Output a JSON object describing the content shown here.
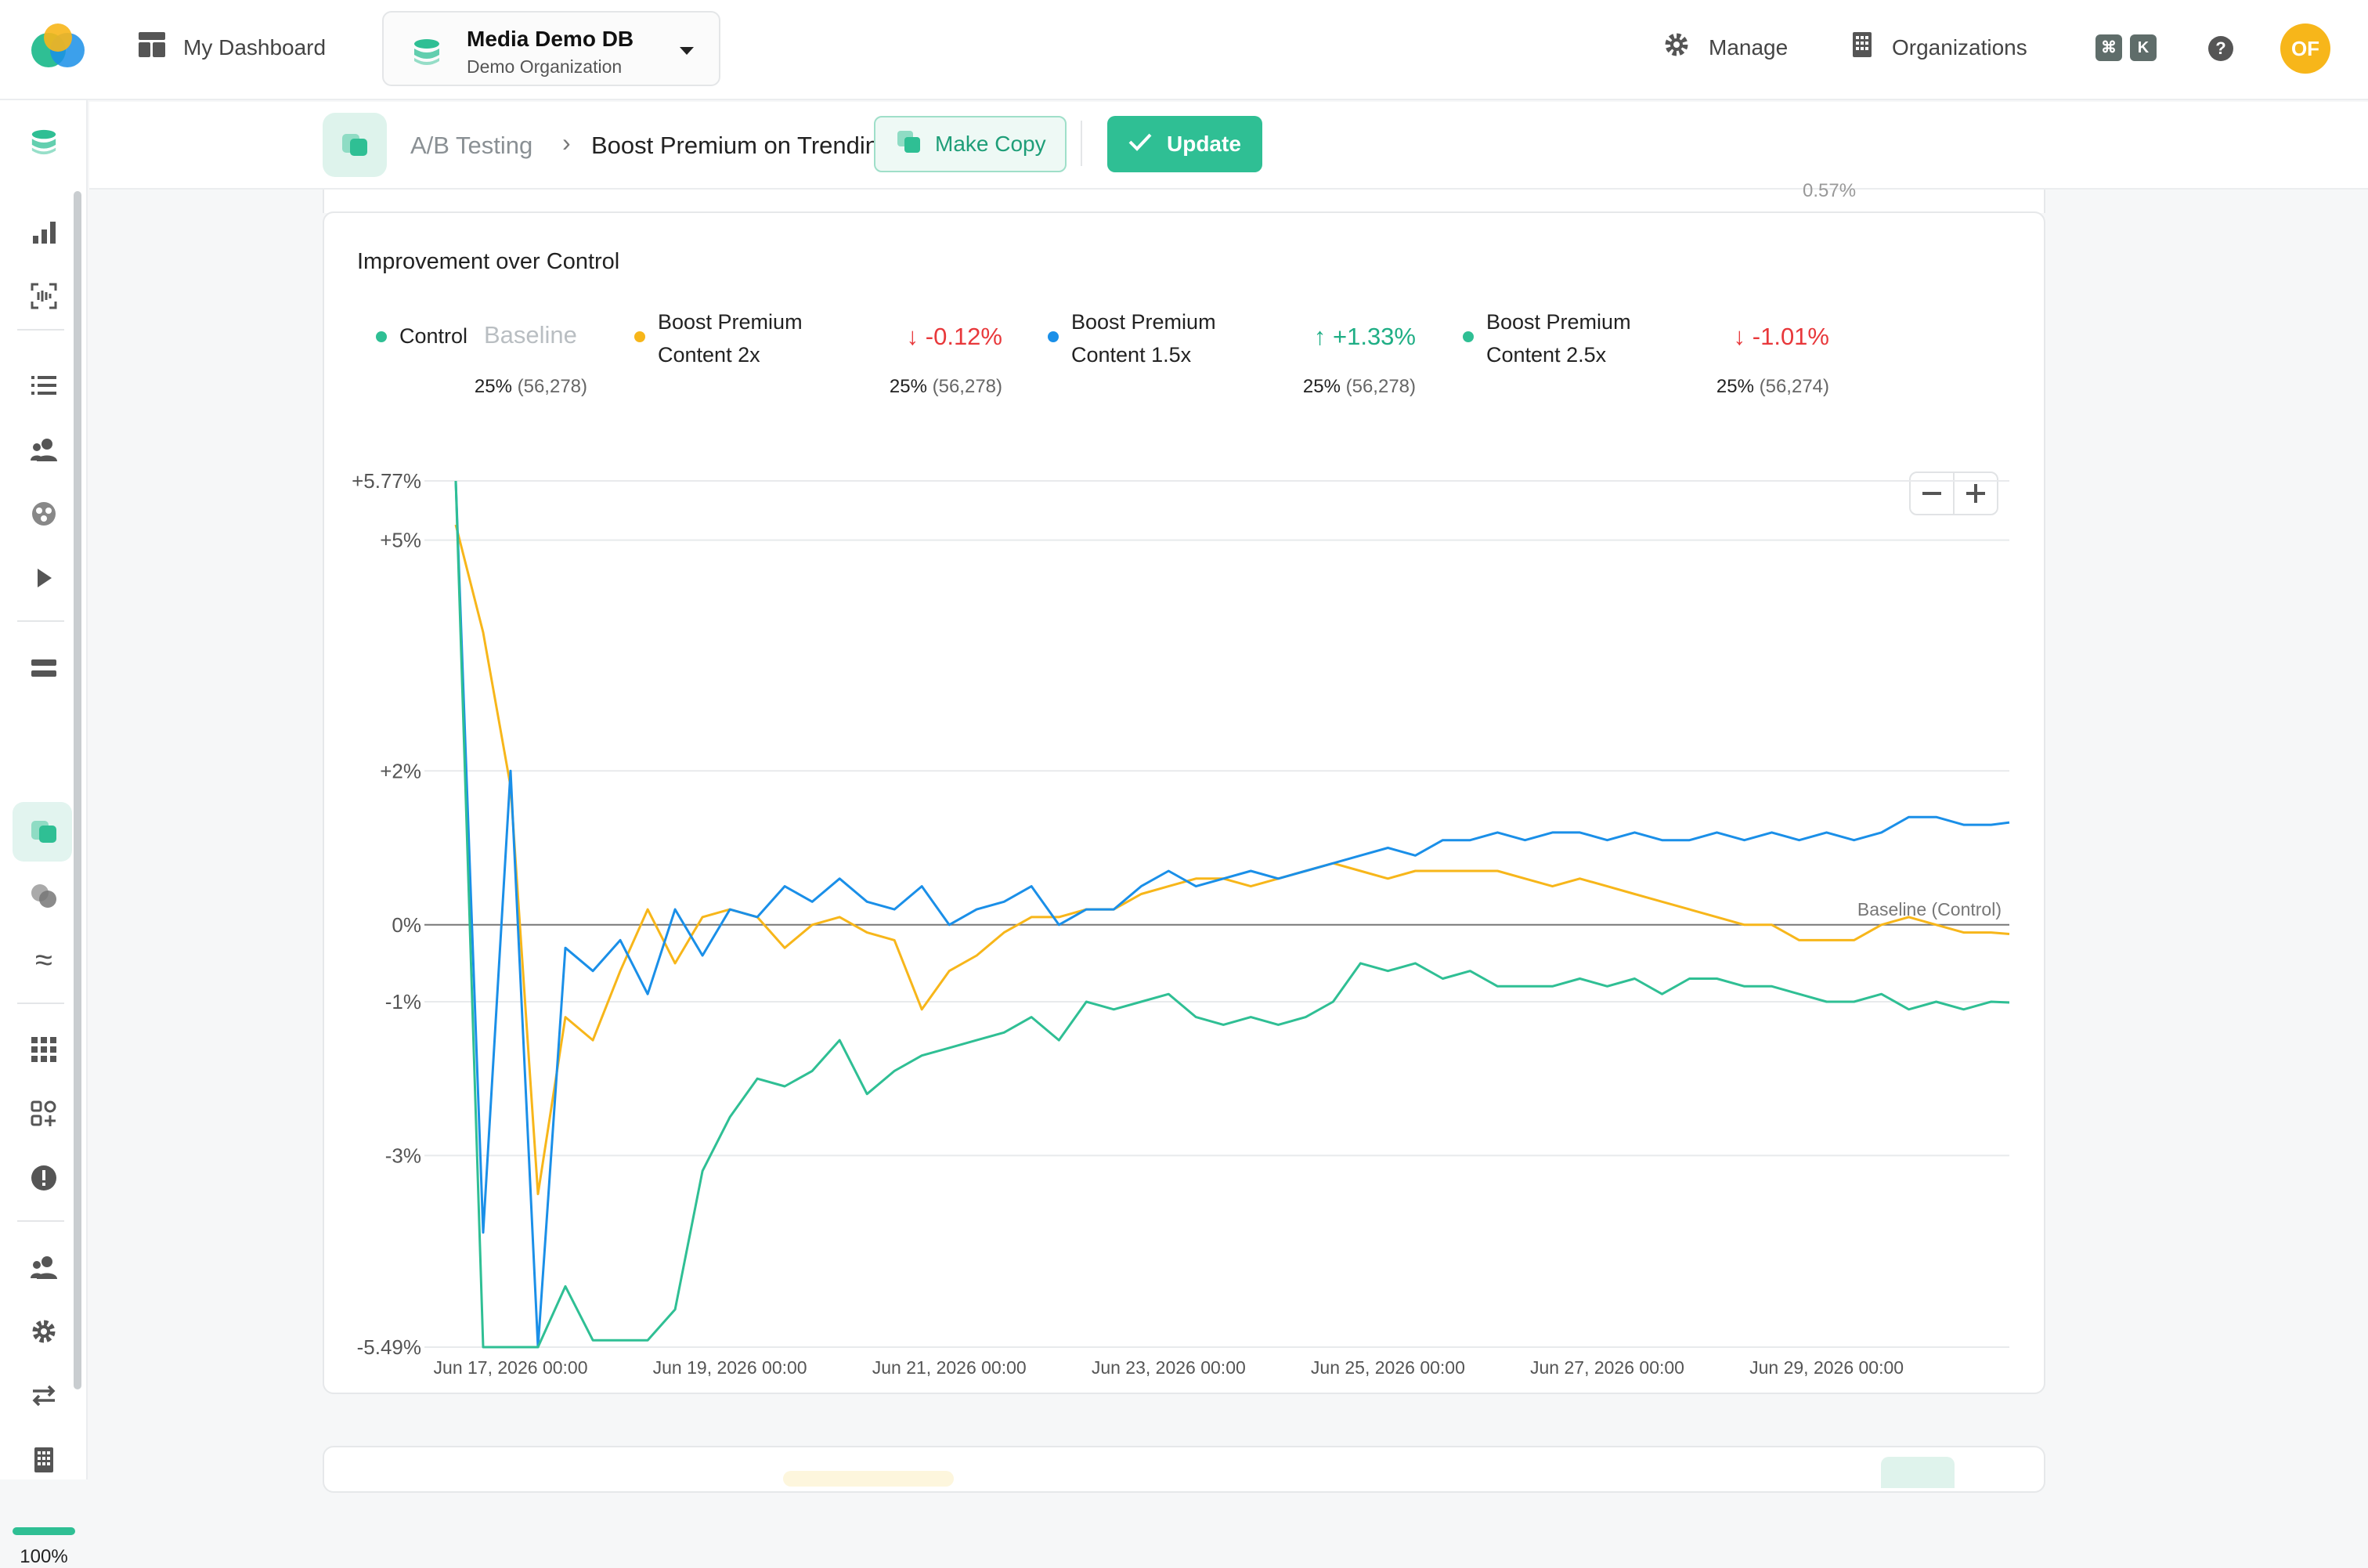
{
  "header": {
    "dashboard_label": "My Dashboard",
    "db_name": "Media Demo DB",
    "db_org": "Demo Organization",
    "manage_label": "Manage",
    "orgs_label": "Organizations",
    "kbd_cmd": "⌘",
    "kbd_k": "K",
    "help": "?",
    "avatar_initials": "OF"
  },
  "sidebar": {
    "zoom_pct": "100%",
    "icons": [
      "database-icon",
      "bar-chart-icon",
      "scan-icon",
      "list-icon",
      "users-icon",
      "dots-icon",
      "play-icon",
      "layers-icon",
      "ab-test-icon",
      "circles-icon",
      "approx-icon",
      "grid-icon",
      "apps-add-icon",
      "alert-icon",
      "team-icon",
      "gear-icon",
      "swap-icon",
      "building-icon"
    ]
  },
  "subheader": {
    "crumb_parent": "A/B Testing",
    "crumb_current": "Boost Premium on Trending Scenario",
    "copy_label": "Make Copy",
    "update_label": "Update"
  },
  "card": {
    "cut_text": "0.57%",
    "title": "Improvement over Control",
    "baseline_tag": "Baseline",
    "legend": [
      {
        "name_line1": "Control",
        "name_line2": "",
        "delta": "",
        "dir": "",
        "share": "25%",
        "count": "(56,278)",
        "color": "#2fbf94"
      },
      {
        "name_line1": "Boost Premium",
        "name_line2": "Content 2x",
        "delta": "-0.12%",
        "dir": "down",
        "share": "25%",
        "count": "(56,278)",
        "color": "#f7b61a"
      },
      {
        "name_line1": "Boost Premium",
        "name_line2": "Content 1.5x",
        "delta": "+1.33%",
        "dir": "up",
        "share": "25%",
        "count": "(56,278)",
        "color": "#1a8fe8"
      },
      {
        "name_line1": "Boost Premium",
        "name_line2": "Content 2.5x",
        "delta": "-1.01%",
        "dir": "down",
        "share": "25%",
        "count": "(56,274)",
        "color": "#2fbf94"
      }
    ]
  },
  "colors": {
    "accent": "#2fbf94",
    "up": "#1fae85",
    "down": "#e8383b"
  },
  "chart_data": {
    "type": "line",
    "title": "Improvement over Control",
    "xlabel": "",
    "ylabel": "",
    "ylim": [
      -5.49,
      5.77
    ],
    "y_ticks": [
      "+5.77%",
      "+5%",
      "+2%",
      "0%",
      "-1%",
      "-3%",
      "-5.49%"
    ],
    "y_tick_values": [
      5.77,
      5,
      2,
      0,
      -1,
      -3,
      -5.49
    ],
    "x_ticks": [
      "Jun 17, 2026 00:00",
      "Jun 19, 2026 00:00",
      "Jun 21, 2026 00:00",
      "Jun 23, 2026 00:00",
      "Jun 25, 2026 00:00",
      "Jun 27, 2026 00:00",
      "Jun 29, 2026 00:00"
    ],
    "x_range": [
      "2026-06-16T12:00",
      "2026-06-30T16:00"
    ],
    "baseline_label": "Baseline (Control)",
    "grid": true,
    "legend": "top",
    "series": [
      {
        "name": "Boost Premium Content 2x",
        "color": "#f7b61a",
        "x": [
          "2026-06-16T12:00",
          "2026-06-16T18:00",
          "2026-06-17T00:00",
          "2026-06-17T06:00",
          "2026-06-17T12:00",
          "2026-06-17T18:00",
          "2026-06-18T00:00",
          "2026-06-18T06:00",
          "2026-06-18T12:00",
          "2026-06-18T18:00",
          "2026-06-19T00:00",
          "2026-06-19T06:00",
          "2026-06-19T12:00",
          "2026-06-19T18:00",
          "2026-06-20T00:00",
          "2026-06-20T06:00",
          "2026-06-20T12:00",
          "2026-06-20T18:00",
          "2026-06-21T00:00",
          "2026-06-21T06:00",
          "2026-06-21T12:00",
          "2026-06-21T18:00",
          "2026-06-22T00:00",
          "2026-06-22T06:00",
          "2026-06-22T12:00",
          "2026-06-22T18:00",
          "2026-06-23T00:00",
          "2026-06-23T06:00",
          "2026-06-23T12:00",
          "2026-06-23T18:00",
          "2026-06-24T00:00",
          "2026-06-24T06:00",
          "2026-06-24T12:00",
          "2026-06-24T18:00",
          "2026-06-25T00:00",
          "2026-06-25T06:00",
          "2026-06-25T12:00",
          "2026-06-25T18:00",
          "2026-06-26T00:00",
          "2026-06-26T06:00",
          "2026-06-26T12:00",
          "2026-06-26T18:00",
          "2026-06-27T00:00",
          "2026-06-27T06:00",
          "2026-06-27T12:00",
          "2026-06-27T18:00",
          "2026-06-28T00:00",
          "2026-06-28T06:00",
          "2026-06-28T12:00",
          "2026-06-28T18:00",
          "2026-06-29T00:00",
          "2026-06-29T06:00",
          "2026-06-29T12:00",
          "2026-06-29T18:00",
          "2026-06-30T00:00",
          "2026-06-30T06:00",
          "2026-06-30T12:00",
          "2026-06-30T16:00"
        ],
        "values": [
          5.2,
          3.8,
          1.8,
          -3.5,
          -1.2,
          -1.5,
          -0.6,
          0.2,
          -0.5,
          0.1,
          0.2,
          0.1,
          -0.3,
          0.0,
          0.1,
          -0.1,
          -0.2,
          -1.1,
          -0.6,
          -0.4,
          -0.1,
          0.1,
          0.1,
          0.2,
          0.2,
          0.4,
          0.5,
          0.6,
          0.6,
          0.5,
          0.6,
          0.7,
          0.8,
          0.7,
          0.6,
          0.7,
          0.7,
          0.7,
          0.7,
          0.6,
          0.5,
          0.6,
          0.5,
          0.4,
          0.3,
          0.2,
          0.1,
          0.0,
          0.0,
          -0.2,
          -0.2,
          -0.2,
          0.0,
          0.1,
          0.0,
          -0.1,
          -0.1,
          -0.12
        ]
      },
      {
        "name": "Boost Premium Content 1.5x",
        "color": "#1a8fe8",
        "x": [
          "2026-06-16T12:00",
          "2026-06-16T18:00",
          "2026-06-17T00:00",
          "2026-06-17T06:00",
          "2026-06-17T12:00",
          "2026-06-17T18:00",
          "2026-06-18T00:00",
          "2026-06-18T06:00",
          "2026-06-18T12:00",
          "2026-06-18T18:00",
          "2026-06-19T00:00",
          "2026-06-19T06:00",
          "2026-06-19T12:00",
          "2026-06-19T18:00",
          "2026-06-20T00:00",
          "2026-06-20T06:00",
          "2026-06-20T12:00",
          "2026-06-20T18:00",
          "2026-06-21T00:00",
          "2026-06-21T06:00",
          "2026-06-21T12:00",
          "2026-06-21T18:00",
          "2026-06-22T00:00",
          "2026-06-22T06:00",
          "2026-06-22T12:00",
          "2026-06-22T18:00",
          "2026-06-23T00:00",
          "2026-06-23T06:00",
          "2026-06-23T12:00",
          "2026-06-23T18:00",
          "2026-06-24T00:00",
          "2026-06-24T06:00",
          "2026-06-24T12:00",
          "2026-06-24T18:00",
          "2026-06-25T00:00",
          "2026-06-25T06:00",
          "2026-06-25T12:00",
          "2026-06-25T18:00",
          "2026-06-26T00:00",
          "2026-06-26T06:00",
          "2026-06-26T12:00",
          "2026-06-26T18:00",
          "2026-06-27T00:00",
          "2026-06-27T06:00",
          "2026-06-27T12:00",
          "2026-06-27T18:00",
          "2026-06-28T00:00",
          "2026-06-28T06:00",
          "2026-06-28T12:00",
          "2026-06-28T18:00",
          "2026-06-29T00:00",
          "2026-06-29T06:00",
          "2026-06-29T12:00",
          "2026-06-29T18:00",
          "2026-06-30T00:00",
          "2026-06-30T06:00",
          "2026-06-30T12:00",
          "2026-06-30T16:00"
        ],
        "values": [
          5.77,
          -4.0,
          2.0,
          -5.49,
          -0.3,
          -0.6,
          -0.2,
          -0.9,
          0.2,
          -0.4,
          0.2,
          0.1,
          0.5,
          0.3,
          0.6,
          0.3,
          0.2,
          0.5,
          0.0,
          0.2,
          0.3,
          0.5,
          0.0,
          0.2,
          0.2,
          0.5,
          0.7,
          0.5,
          0.6,
          0.7,
          0.6,
          0.7,
          0.8,
          0.9,
          1.0,
          0.9,
          1.1,
          1.1,
          1.2,
          1.1,
          1.2,
          1.2,
          1.1,
          1.2,
          1.1,
          1.1,
          1.2,
          1.1,
          1.2,
          1.1,
          1.2,
          1.1,
          1.2,
          1.4,
          1.4,
          1.3,
          1.3,
          1.33
        ]
      },
      {
        "name": "Boost Premium Content 2.5x",
        "color": "#2fbf94",
        "x": [
          "2026-06-16T12:00",
          "2026-06-16T18:00",
          "2026-06-17T00:00",
          "2026-06-17T06:00",
          "2026-06-17T12:00",
          "2026-06-17T18:00",
          "2026-06-18T00:00",
          "2026-06-18T06:00",
          "2026-06-18T12:00",
          "2026-06-18T18:00",
          "2026-06-19T00:00",
          "2026-06-19T06:00",
          "2026-06-19T12:00",
          "2026-06-19T18:00",
          "2026-06-20T00:00",
          "2026-06-20T06:00",
          "2026-06-20T12:00",
          "2026-06-20T18:00",
          "2026-06-21T00:00",
          "2026-06-21T06:00",
          "2026-06-21T12:00",
          "2026-06-21T18:00",
          "2026-06-22T00:00",
          "2026-06-22T06:00",
          "2026-06-22T12:00",
          "2026-06-22T18:00",
          "2026-06-23T00:00",
          "2026-06-23T06:00",
          "2026-06-23T12:00",
          "2026-06-23T18:00",
          "2026-06-24T00:00",
          "2026-06-24T06:00",
          "2026-06-24T12:00",
          "2026-06-24T18:00",
          "2026-06-25T00:00",
          "2026-06-25T06:00",
          "2026-06-25T12:00",
          "2026-06-25T18:00",
          "2026-06-26T00:00",
          "2026-06-26T06:00",
          "2026-06-26T12:00",
          "2026-06-26T18:00",
          "2026-06-27T00:00",
          "2026-06-27T06:00",
          "2026-06-27T12:00",
          "2026-06-27T18:00",
          "2026-06-28T00:00",
          "2026-06-28T06:00",
          "2026-06-28T12:00",
          "2026-06-28T18:00",
          "2026-06-29T00:00",
          "2026-06-29T06:00",
          "2026-06-29T12:00",
          "2026-06-29T18:00",
          "2026-06-30T00:00",
          "2026-06-30T06:00",
          "2026-06-30T12:00",
          "2026-06-30T16:00"
        ],
        "values": [
          5.77,
          -5.49,
          -5.49,
          -5.49,
          -4.7,
          -5.4,
          -5.4,
          -5.4,
          -5.0,
          -3.2,
          -2.5,
          -2.0,
          -2.1,
          -1.9,
          -1.5,
          -2.2,
          -1.9,
          -1.7,
          -1.6,
          -1.5,
          -1.4,
          -1.2,
          -1.5,
          -1.0,
          -1.1,
          -1.0,
          -0.9,
          -1.2,
          -1.3,
          -1.2,
          -1.3,
          -1.2,
          -1.0,
          -0.5,
          -0.6,
          -0.5,
          -0.7,
          -0.6,
          -0.8,
          -0.8,
          -0.8,
          -0.7,
          -0.8,
          -0.7,
          -0.9,
          -0.7,
          -0.7,
          -0.8,
          -0.8,
          -0.9,
          -1.0,
          -1.0,
          -0.9,
          -1.1,
          -1.0,
          -1.1,
          -1.0,
          -1.01
        ]
      }
    ]
  }
}
